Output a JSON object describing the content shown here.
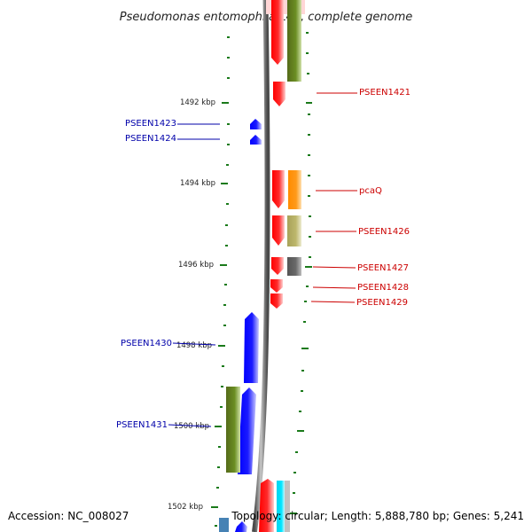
{
  "title": "Pseudomonas entomophila L48, complete genome",
  "footer": {
    "accession": "Accession: NC_008027",
    "topology": "Topology: circular; Length: 5,888,780 bp; Genes: 5,241"
  },
  "scale": [
    {
      "label": "1492 kbp"
    },
    {
      "label": "1494 kbp"
    },
    {
      "label": "1496 kbp"
    },
    {
      "label": "1498 kbp"
    },
    {
      "label": "1500 kbp"
    },
    {
      "label": "1502 kbp"
    }
  ],
  "genes": {
    "red": [
      "PSEEN1421",
      "pcaQ",
      "PSEEN1426",
      "PSEEN1427",
      "PSEEN1428",
      "PSEEN1429"
    ],
    "blue": [
      "PSEEN1423",
      "PSEEN1424",
      "PSEEN1430",
      "PSEEN1431"
    ]
  },
  "colors": {
    "forward": "#ff0000",
    "reverse": "#0000ff",
    "olive": "#6b8e23",
    "orange": "#ff8c00",
    "khaki": "#bdb76b",
    "gray": "#696969",
    "cyan": "#00e5ff",
    "axis": "#808080",
    "ticks": "#1a7a1a"
  }
}
